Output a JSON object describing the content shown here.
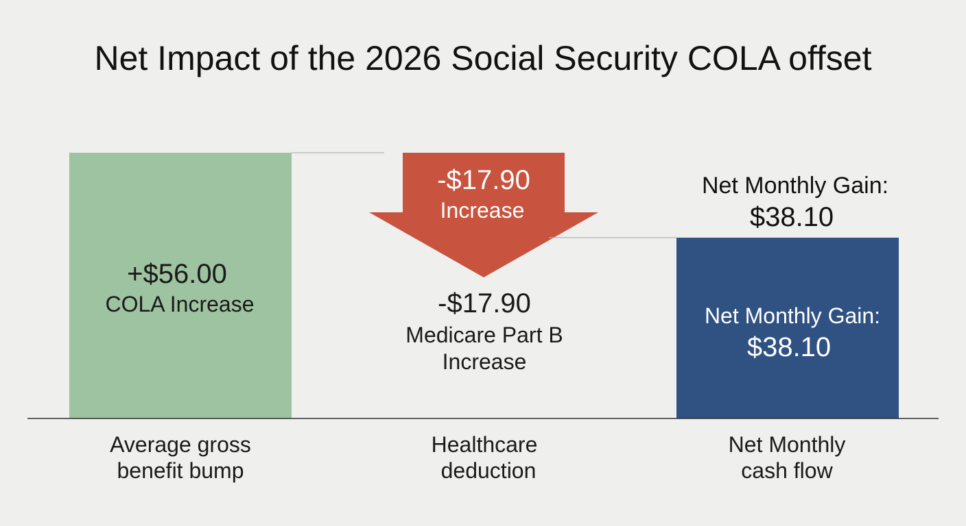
{
  "chart_data": {
    "type": "bar",
    "subtype": "waterfall",
    "title": "Net Impact of the 2026 Social Security COLA offset",
    "categories": [
      "Average gross benefit bump",
      "Healthcare deduction",
      "Net Monthly cash flow"
    ],
    "category_lines": [
      [
        "Average gross",
        "benefit bump"
      ],
      [
        "Healthcare",
        "deduction"
      ],
      [
        "Net Monthly",
        "cash flow"
      ]
    ],
    "values": [
      56.0,
      -17.9,
      38.1
    ],
    "grid": false,
    "colors": {
      "increase": "#9dc3a0",
      "decrease": "#c8533f",
      "total": "#2f5283",
      "connector": "#b5b5b5",
      "baseline": "#333333",
      "background": "#efefee"
    },
    "labels": {
      "cola": {
        "value": "+$56.00",
        "text": "COLA Increase"
      },
      "arrow": {
        "value": "-$17.90",
        "text": "Increase"
      },
      "medicare": {
        "value": "-$17.90",
        "line1": "Medicare Part B",
        "line2": "Increase"
      },
      "net_above": {
        "text": "Net Monthly Gain:",
        "value": "$38.10"
      },
      "net_inside": {
        "text": "Net Monthly Gain:",
        "value": "$38.10"
      }
    }
  }
}
